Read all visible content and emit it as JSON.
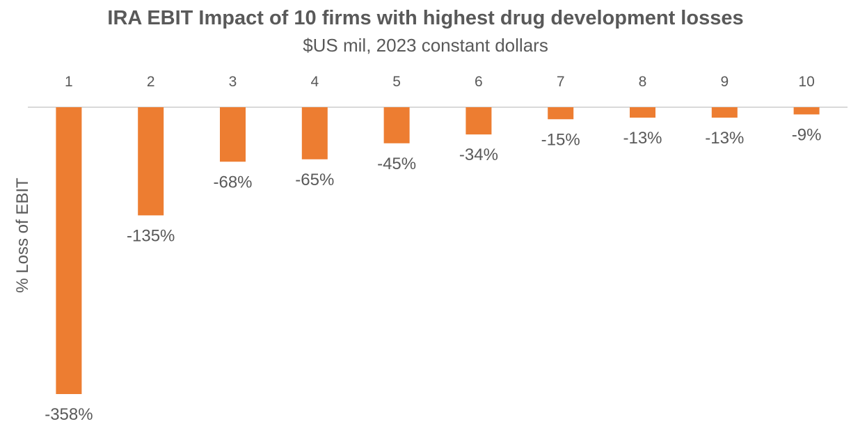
{
  "chart_data": {
    "type": "bar",
    "title": "IRA EBIT Impact of 10 firms with highest drug development losses",
    "subtitle": "$US mil, 2023 constant dollars",
    "xlabel": "",
    "ylabel": "% Loss of EBIT",
    "categories": [
      "1",
      "2",
      "3",
      "4",
      "5",
      "6",
      "7",
      "8",
      "9",
      "10"
    ],
    "values": [
      -358,
      -135,
      -68,
      -65,
      -45,
      -34,
      -15,
      -13,
      -13,
      -9
    ],
    "value_labels": [
      "-358%",
      "-135%",
      "-68%",
      "-65%",
      "-45%",
      "-34%",
      "-15%",
      "-13%",
      "-13%",
      "-9%"
    ],
    "ylim": [
      -358,
      0
    ],
    "x_axis_position": "top",
    "grid": false,
    "legend": "none",
    "bar_color": "#ED7D31",
    "axis_color": "#D9D9D9"
  }
}
